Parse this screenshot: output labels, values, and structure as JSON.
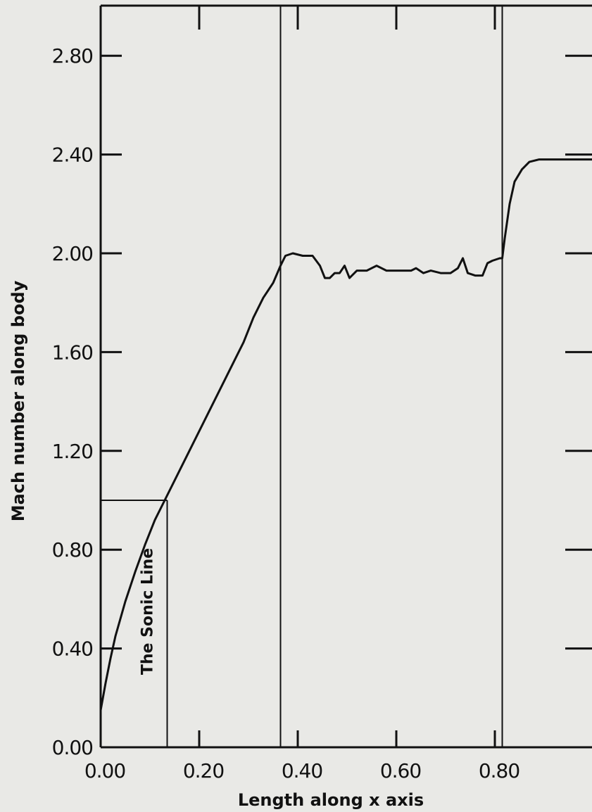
{
  "chart_data": {
    "type": "line",
    "title": "",
    "xlabel": "Length along x axis",
    "ylabel": "Mach number along body",
    "xlim": [
      0.0,
      1.0
    ],
    "ylim": [
      0.0,
      3.0
    ],
    "x_ticks": [
      "0.00",
      "0.20",
      "0.40",
      "0.60",
      "0.80"
    ],
    "x_tick_values": [
      0.0,
      0.2,
      0.4,
      0.6,
      0.8
    ],
    "y_ticks": [
      "0.00",
      "0.40",
      "0.80",
      "1.20",
      "1.60",
      "2.00",
      "2.40",
      "2.80"
    ],
    "y_tick_values": [
      0.0,
      0.4,
      0.8,
      1.2,
      1.6,
      2.0,
      2.4,
      2.8
    ],
    "grid": false,
    "series": [
      {
        "x": [
          0.0,
          0.01,
          0.02,
          0.03,
          0.05,
          0.07,
          0.09,
          0.11,
          0.13,
          0.15,
          0.18,
          0.21,
          0.24,
          0.27,
          0.29,
          0.31,
          0.33,
          0.35,
          0.365,
          0.375,
          0.39,
          0.41,
          0.43,
          0.445,
          0.455,
          0.465,
          0.475,
          0.485,
          0.495,
          0.505,
          0.52,
          0.54,
          0.56,
          0.58,
          0.6,
          0.62,
          0.63,
          0.64,
          0.655,
          0.67,
          0.69,
          0.71,
          0.725,
          0.735,
          0.745,
          0.76,
          0.775,
          0.785,
          0.795,
          0.81,
          0.815,
          0.82,
          0.83,
          0.84,
          0.855,
          0.87,
          0.89,
          0.91,
          0.94,
          0.97,
          1.0
        ],
        "y": [
          0.15,
          0.26,
          0.36,
          0.45,
          0.59,
          0.71,
          0.82,
          0.92,
          1.0,
          1.08,
          1.2,
          1.32,
          1.44,
          1.56,
          1.64,
          1.74,
          1.82,
          1.88,
          1.95,
          1.99,
          2.0,
          1.99,
          1.99,
          1.95,
          1.9,
          1.9,
          1.92,
          1.92,
          1.95,
          1.9,
          1.93,
          1.93,
          1.95,
          1.93,
          1.93,
          1.93,
          1.93,
          1.94,
          1.92,
          1.93,
          1.92,
          1.92,
          1.94,
          1.98,
          1.92,
          1.91,
          1.91,
          1.96,
          1.97,
          1.98,
          1.98,
          2.06,
          2.2,
          2.29,
          2.34,
          2.37,
          2.38,
          2.38,
          2.38,
          2.38,
          2.38
        ]
      }
    ],
    "vertical_lines": [
      0.365,
      0.815
    ],
    "sonic_line": {
      "x": 0.135,
      "y": 1.0
    },
    "annotations": [
      {
        "text": "The Sonic Line",
        "x": 0.105,
        "y": 0.55
      }
    ]
  }
}
